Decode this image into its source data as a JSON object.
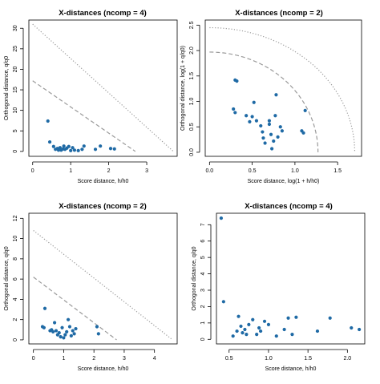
{
  "chart_data": [
    {
      "type": "scatter",
      "title": "X-distances (ncomp = 4)",
      "xlabel": "Score distance, h/h0",
      "ylabel": "Orthogonal distance, q/q0",
      "xlim": [
        -0.1,
        3.8
      ],
      "ylim": [
        -1.2,
        32
      ],
      "xticks": [
        0,
        1,
        2,
        3
      ],
      "yticks": [
        0,
        5,
        10,
        15,
        20,
        25,
        30
      ],
      "grid": false,
      "points": [
        [
          0.4,
          7.4
        ],
        [
          0.45,
          2.3
        ],
        [
          0.55,
          1.2
        ],
        [
          0.6,
          0.5
        ],
        [
          0.65,
          0.7
        ],
        [
          0.68,
          0.3
        ],
        [
          0.72,
          0.9
        ],
        [
          0.75,
          0.3
        ],
        [
          0.8,
          0.6
        ],
        [
          0.82,
          1.3
        ],
        [
          0.85,
          0.5
        ],
        [
          0.9,
          0.8
        ],
        [
          0.95,
          1.2
        ],
        [
          1.0,
          0.2
        ],
        [
          1.05,
          0.9
        ],
        [
          1.1,
          0.3
        ],
        [
          1.2,
          0.2
        ],
        [
          1.3,
          0.5
        ],
        [
          1.35,
          1.3
        ],
        [
          1.65,
          0.5
        ],
        [
          1.78,
          1.3
        ],
        [
          2.05,
          0.7
        ],
        [
          2.15,
          0.6
        ]
      ],
      "lines": [
        {
          "style": "dashed",
          "points": [
            [
              0,
              17.2
            ],
            [
              2.7,
              0
            ]
          ]
        },
        {
          "style": "dotted",
          "points": [
            [
              0,
              31
            ],
            [
              3.7,
              0
            ]
          ]
        }
      ]
    },
    {
      "type": "scatter",
      "title": "X-distances (ncomp = 2)",
      "xlabel": "Score distance, log(1 + h/h0)",
      "ylabel": "Orthogonal distance, log(1 + q/q0)",
      "xlim": [
        -0.05,
        1.78
      ],
      "ylim": [
        -0.08,
        2.6
      ],
      "xticks": [
        0.0,
        0.5,
        1.0,
        1.5
      ],
      "yticks": [
        0.0,
        0.5,
        1.0,
        1.5,
        2.0,
        2.5
      ],
      "grid": false,
      "points": [
        [
          0.28,
          0.85
        ],
        [
          0.3,
          0.78
        ],
        [
          0.3,
          1.42
        ],
        [
          0.32,
          1.4
        ],
        [
          0.43,
          0.72
        ],
        [
          0.47,
          0.6
        ],
        [
          0.5,
          0.7
        ],
        [
          0.52,
          0.98
        ],
        [
          0.55,
          0.62
        ],
        [
          0.6,
          0.52
        ],
        [
          0.62,
          0.4
        ],
        [
          0.63,
          0.28
        ],
        [
          0.65,
          0.18
        ],
        [
          0.7,
          0.55
        ],
        [
          0.7,
          0.62
        ],
        [
          0.72,
          0.35
        ],
        [
          0.73,
          0.07
        ],
        [
          0.75,
          0.22
        ],
        [
          0.77,
          0.72
        ],
        [
          0.78,
          1.13
        ],
        [
          0.8,
          0.3
        ],
        [
          0.83,
          0.5
        ],
        [
          0.85,
          0.42
        ],
        [
          1.08,
          0.42
        ],
        [
          1.1,
          0.38
        ],
        [
          1.12,
          0.82
        ]
      ],
      "lines": [
        {
          "style": "dashed",
          "curve": "ellipse",
          "a": 1.27,
          "b": 1.97
        },
        {
          "style": "dotted",
          "curve": "ellipse",
          "a": 1.7,
          "b": 2.45
        }
      ]
    },
    {
      "type": "scatter",
      "title": "X-distances (ncomp = 2)",
      "xlabel": "Score distance, h/h0",
      "ylabel": "Orthogonal distance, q/q0",
      "xlim": [
        -0.15,
        4.75
      ],
      "ylim": [
        -0.4,
        12.5
      ],
      "xticks": [
        0,
        1,
        2,
        3,
        4
      ],
      "yticks": [
        0,
        2,
        4,
        6,
        8,
        10,
        12
      ],
      "grid": false,
      "points": [
        [
          0.3,
          1.3
        ],
        [
          0.35,
          1.2
        ],
        [
          0.38,
          3.1
        ],
        [
          0.55,
          0.9
        ],
        [
          0.6,
          1.0
        ],
        [
          0.65,
          0.8
        ],
        [
          0.7,
          1.7
        ],
        [
          0.75,
          0.9
        ],
        [
          0.8,
          0.5
        ],
        [
          0.85,
          0.7
        ],
        [
          0.9,
          0.3
        ],
        [
          0.95,
          1.2
        ],
        [
          1.0,
          0.2
        ],
        [
          1.05,
          0.5
        ],
        [
          1.1,
          0.8
        ],
        [
          1.15,
          2.0
        ],
        [
          1.2,
          1.3
        ],
        [
          1.25,
          0.4
        ],
        [
          1.3,
          0.9
        ],
        [
          1.35,
          0.6
        ],
        [
          1.4,
          1.1
        ],
        [
          2.1,
          1.3
        ],
        [
          2.15,
          0.6
        ]
      ],
      "lines": [
        {
          "style": "dashed",
          "points": [
            [
              0,
              6.2
            ],
            [
              2.75,
              0
            ]
          ]
        },
        {
          "style": "dotted",
          "points": [
            [
              0,
              10.8
            ],
            [
              4.6,
              0
            ]
          ]
        }
      ]
    },
    {
      "type": "scatter",
      "title": "X-distances (ncomp = 4)",
      "xlabel": "Score distance, h/h0",
      "ylabel": "Orthogonal distance, q/q0",
      "xlim": [
        0.34,
        2.22
      ],
      "ylim": [
        -0.28,
        7.7
      ],
      "xticks": [
        0.5,
        1.0,
        1.5,
        2.0
      ],
      "yticks": [
        0,
        1,
        2,
        3,
        4,
        5,
        6,
        7
      ],
      "grid": false,
      "points": [
        [
          0.4,
          7.4
        ],
        [
          0.43,
          2.3
        ],
        [
          0.55,
          0.2
        ],
        [
          0.6,
          0.5
        ],
        [
          0.62,
          1.4
        ],
        [
          0.65,
          0.8
        ],
        [
          0.67,
          0.4
        ],
        [
          0.7,
          0.6
        ],
        [
          0.72,
          0.3
        ],
        [
          0.75,
          0.9
        ],
        [
          0.8,
          1.2
        ],
        [
          0.85,
          0.3
        ],
        [
          0.88,
          0.7
        ],
        [
          0.9,
          0.5
        ],
        [
          0.95,
          1.1
        ],
        [
          1.0,
          0.9
        ],
        [
          1.1,
          0.2
        ],
        [
          1.2,
          0.6
        ],
        [
          1.25,
          1.3
        ],
        [
          1.3,
          0.3
        ],
        [
          1.35,
          1.35
        ],
        [
          1.62,
          0.5
        ],
        [
          1.78,
          1.3
        ],
        [
          2.05,
          0.7
        ],
        [
          2.15,
          0.6
        ]
      ],
      "lines": []
    }
  ]
}
